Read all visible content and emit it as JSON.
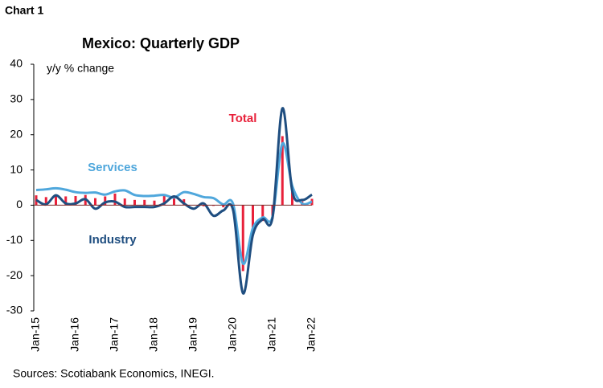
{
  "header": "Chart 1",
  "chart_data": {
    "type": "bar-line",
    "title": "Mexico: Quarterly GDP",
    "y_label": "y/y % change",
    "source": "Sources: Scotiabank Economics, INEGI.",
    "categories": [
      "Jan-15",
      null,
      null,
      null,
      "Jan-16",
      null,
      null,
      null,
      "Jan-17",
      null,
      null,
      null,
      "Jan-18",
      null,
      null,
      null,
      "Jan-19",
      null,
      null,
      null,
      "Jan-20",
      null,
      null,
      null,
      "Jan-21",
      null,
      null,
      null,
      "Jan-22"
    ],
    "series": [
      {
        "name": "Total",
        "type": "bar",
        "color": "#e8213a",
        "values": [
          2.8,
          2.3,
          2.7,
          2.5,
          2.6,
          2.9,
          2.0,
          2.5,
          3.3,
          1.9,
          1.5,
          1.5,
          1.3,
          2.6,
          2.5,
          1.7,
          0.1,
          -0.3,
          -0.2,
          -0.6,
          -1.1,
          -18.7,
          -8.6,
          -4.5,
          -3.8,
          19.6,
          4.5,
          1.1,
          1.8
        ]
      },
      {
        "name": "Services",
        "type": "line",
        "color": "#4fa7dc",
        "values": [
          4.3,
          4.5,
          4.8,
          4.4,
          3.7,
          3.5,
          3.6,
          3.0,
          3.9,
          4.2,
          2.9,
          2.6,
          2.7,
          2.9,
          2.2,
          3.7,
          3.2,
          2.3,
          2.0,
          0.2,
          0.3,
          -16.6,
          -6.5,
          -3.5,
          -3.2,
          17.5,
          5.5,
          0.5,
          1.0
        ]
      },
      {
        "name": "Industry",
        "type": "line",
        "color": "#1f4e80",
        "values": [
          1.5,
          0.2,
          2.8,
          0.5,
          0.5,
          1.7,
          -1.0,
          0.8,
          1.0,
          -0.5,
          -0.5,
          -0.5,
          -0.5,
          0.5,
          2.5,
          0.5,
          -1.0,
          0.5,
          -3.0,
          -1.5,
          -1.5,
          -25.0,
          -8.5,
          -4.0,
          -3.5,
          27.5,
          4.0,
          1.5,
          3.0
        ]
      }
    ],
    "ylim": [
      -30,
      40
    ],
    "yticks": [
      -30,
      -20,
      -10,
      0,
      10,
      20,
      30,
      40
    ]
  }
}
